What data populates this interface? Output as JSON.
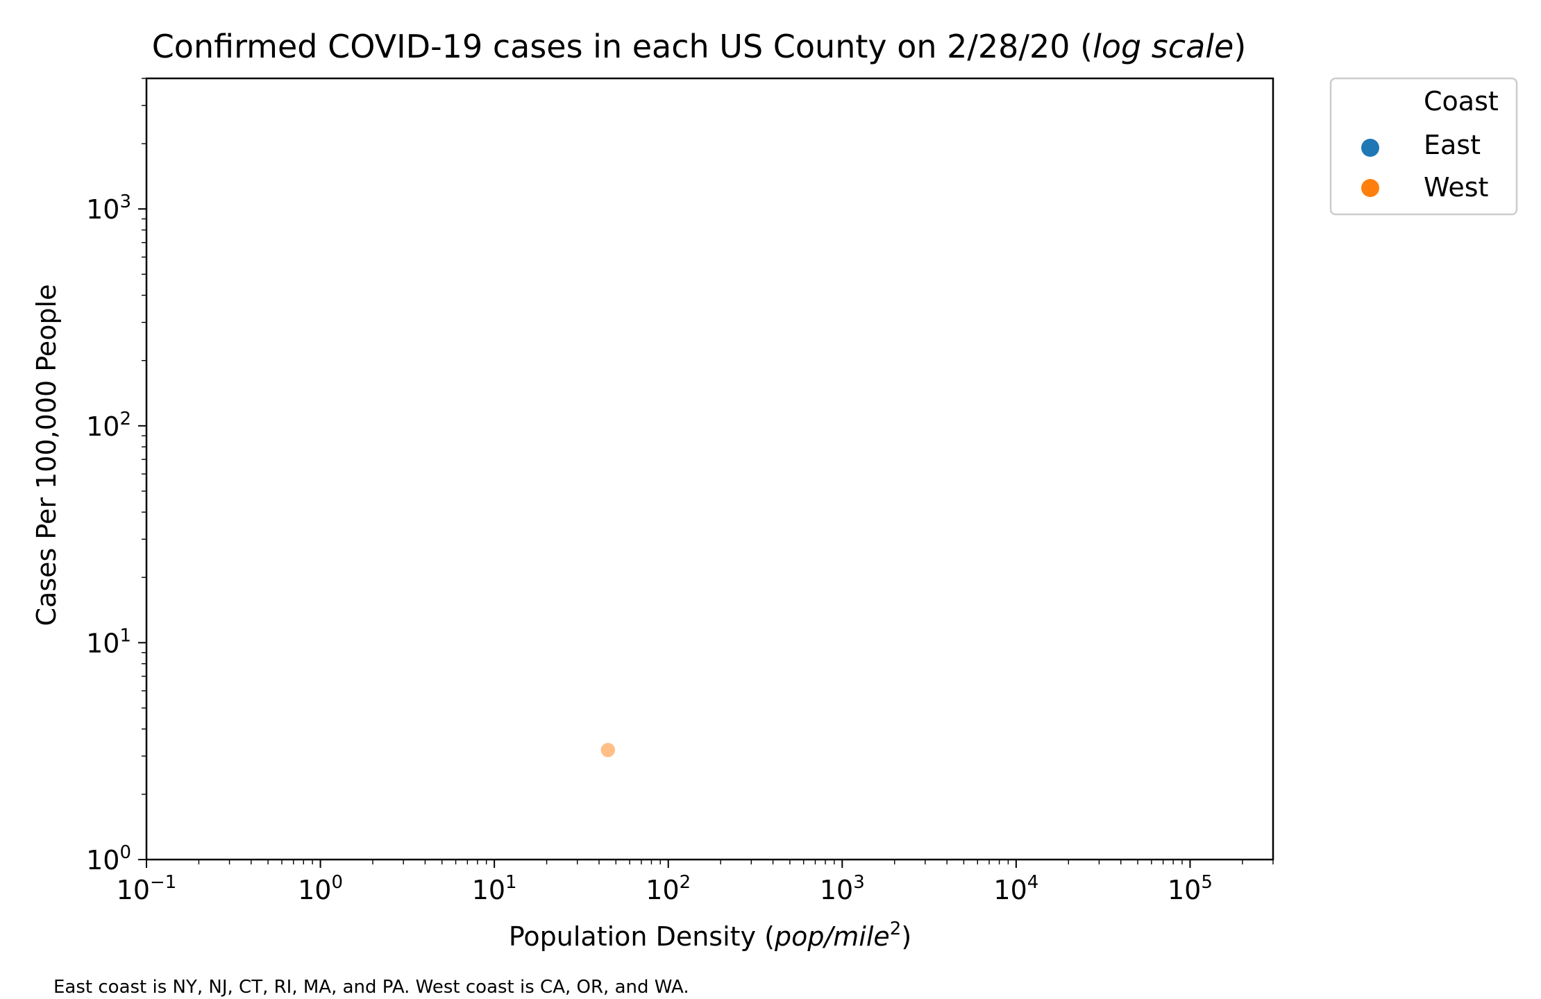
{
  "chart_data": {
    "type": "scatter",
    "title": "Confirmed COVID-19 cases in each US County on 2/28/20 (log scale)",
    "title_parts": {
      "main": "Confirmed COVID-19 cases in each US County on 2/28/20 (",
      "italic": "log scale",
      "end": ")"
    },
    "xlabel": "Population Density (pop/mile²)",
    "xlabel_parts": {
      "main": "Population Density (",
      "italic": "pop/mile",
      "sup": "2",
      "end": ")"
    },
    "ylabel": "Cases Per 100,000 People",
    "xscale": "log",
    "yscale": "log",
    "xlim": [
      0.1,
      300000
    ],
    "ylim": [
      1,
      4000
    ],
    "x_tick_labels": [
      {
        "value": 0.1,
        "base": "10",
        "exp": "−1"
      },
      {
        "value": 1,
        "base": "10",
        "exp": "0"
      },
      {
        "value": 10,
        "base": "10",
        "exp": "1"
      },
      {
        "value": 100,
        "base": "10",
        "exp": "2"
      },
      {
        "value": 1000,
        "base": "10",
        "exp": "3"
      },
      {
        "value": 10000,
        "base": "10",
        "exp": "4"
      },
      {
        "value": 100000,
        "base": "10",
        "exp": "5"
      }
    ],
    "y_tick_labels": [
      {
        "value": 1,
        "base": "10",
        "exp": "0"
      },
      {
        "value": 10,
        "base": "10",
        "exp": "1"
      },
      {
        "value": 100,
        "base": "10",
        "exp": "2"
      },
      {
        "value": 1000,
        "base": "10",
        "exp": "3"
      }
    ],
    "legend": {
      "title": "Coast",
      "placement": "outside-top-right"
    },
    "series": [
      {
        "name": "East",
        "color": "#1f77b4",
        "points": []
      },
      {
        "name": "West",
        "color": "#ff7f0e",
        "points": [
          {
            "x": 45,
            "y": 3.2
          }
        ]
      }
    ],
    "point_alpha": 0.5,
    "grid": false
  },
  "caption": "East coast is NY, NJ, CT, RI, MA, and PA. West coast is CA, OR, and WA."
}
